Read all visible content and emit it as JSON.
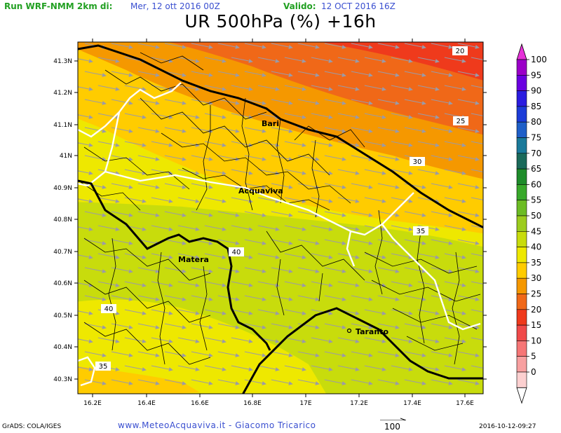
{
  "header": {
    "run_label": "Run WRF-NMM 2km di:",
    "run_date": "Mer, 12 ott 2016 00Z",
    "valid_label": "Valido:",
    "valid_date": "12 OCT 2016 16Z",
    "title": "UR 500hPa (%) +16h"
  },
  "map": {
    "lon_ticks": [
      "16.2E",
      "16.4E",
      "16.6E",
      "16.8E",
      "17E",
      "17.2E",
      "17.4E",
      "17.6E"
    ],
    "lat_ticks": [
      "41.3N",
      "41.2N",
      "41.1N",
      "41N",
      "40.9N",
      "40.8N",
      "40.7N",
      "40.6N",
      "40.5N",
      "40.4N",
      "40.3N"
    ],
    "cities": [
      "Bari",
      "Acquaviva",
      "Matera",
      "Taranto"
    ],
    "contour_labels": [
      "20",
      "25",
      "30",
      "35",
      "40",
      "40",
      "35"
    ]
  },
  "colorbar": {
    "labels": [
      "100",
      "95",
      "90",
      "85",
      "80",
      "75",
      "70",
      "65",
      "60",
      "55",
      "50",
      "45",
      "40",
      "35",
      "30",
      "25",
      "20",
      "15",
      "10",
      "5",
      "0"
    ],
    "colors": [
      "#9b00c8",
      "#6a00e0",
      "#2a1ce0",
      "#1c3cd8",
      "#1f5fc8",
      "#1a7a9a",
      "#1a6a5a",
      "#1e8c2a",
      "#38a82a",
      "#6cbc24",
      "#9ccc1e",
      "#c8dc0c",
      "#eee800",
      "#ffcc00",
      "#f59800",
      "#f06818",
      "#ef3a1c",
      "#f04a4a",
      "#f67676",
      "#f8a0a0",
      "#fcd0d0"
    ]
  },
  "footer": {
    "grads": "GrADS: COLA/IGES",
    "credit": "www.MeteoAcquaviva.it - Giacomo Tricarico",
    "ref_arrow": "100",
    "timestamp": "2016-10-12-09:27"
  }
}
